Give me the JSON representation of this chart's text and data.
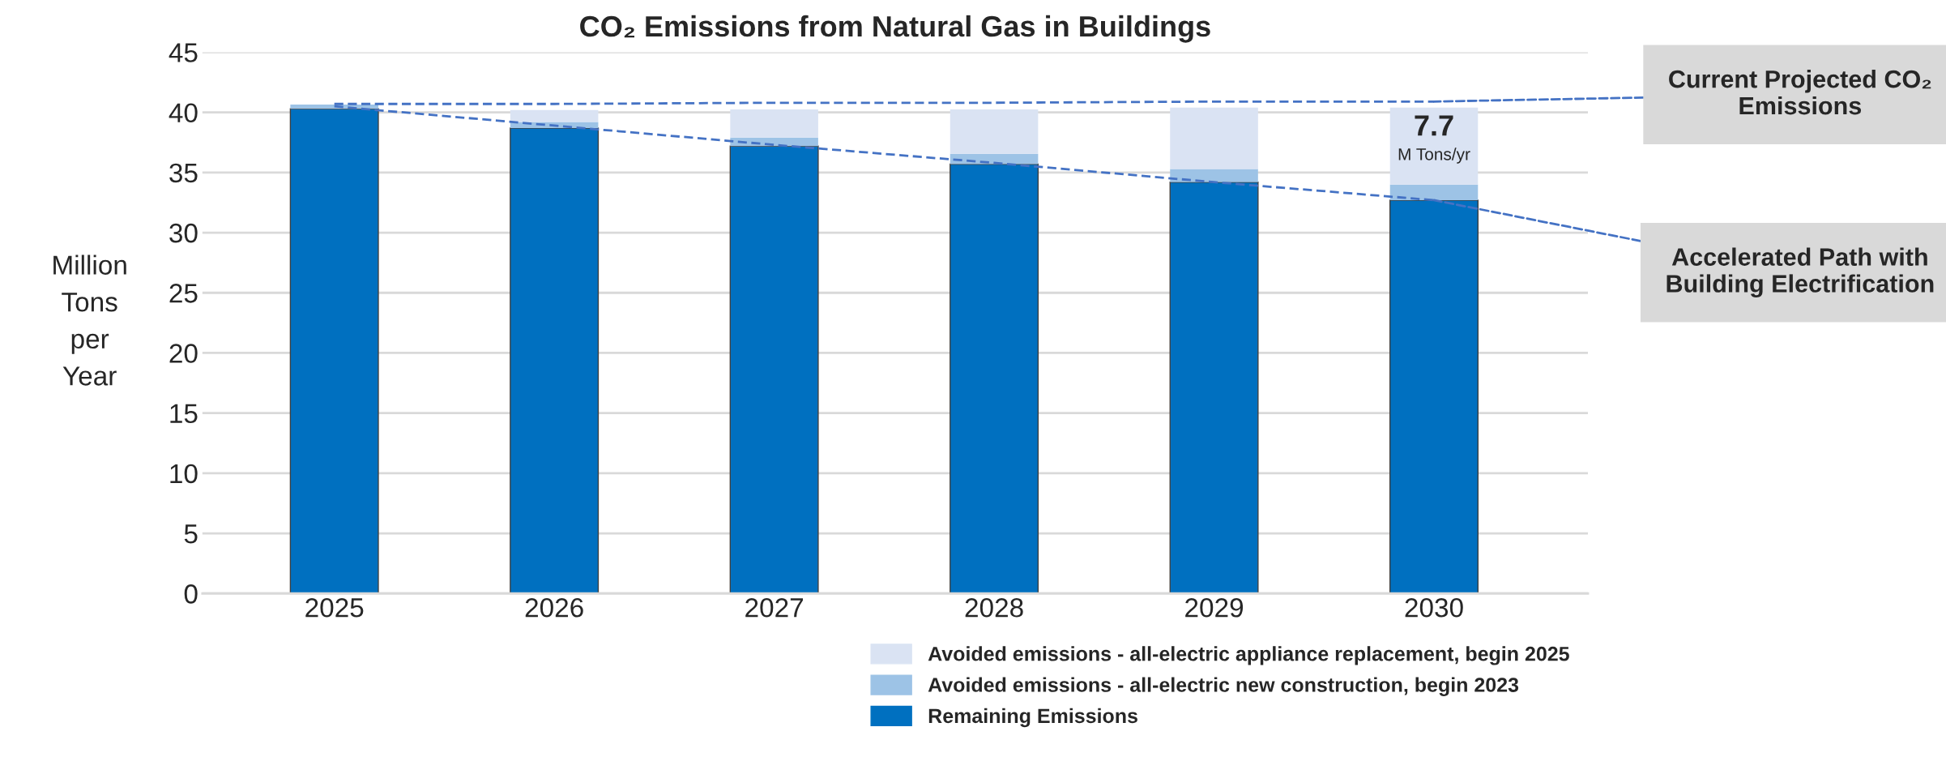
{
  "chart_data": {
    "type": "bar",
    "title": "CO₂ Emissions from Natural Gas in Buildings",
    "ylabel": "Million\nTons\nper\nYear",
    "categories": [
      "2025",
      "2026",
      "2027",
      "2028",
      "2029",
      "2030"
    ],
    "stacked": true,
    "series": [
      {
        "name": "Remaining Emissions",
        "color": "#0070c0",
        "values": [
          40.3,
          38.7,
          37.2,
          35.7,
          34.2,
          32.7
        ]
      },
      {
        "name": "Avoided emissions - all-electric new construction, begin 2023",
        "color": "#9dc3e6",
        "values": [
          0.35,
          0.5,
          0.7,
          0.85,
          1.1,
          1.3
        ]
      },
      {
        "name": "Avoided emissions - all-electric appliance replacement, begin 2025",
        "color": "#dae3f3",
        "values": [
          0,
          1.0,
          2.35,
          3.7,
          5.1,
          6.4
        ]
      },
      {
        "type": "line",
        "color": "#4472c4",
        "line_style": "dashed",
        "values": [
          40.7,
          40.7,
          40.8,
          40.8,
          40.9,
          40.9
        ]
      },
      {
        "type": "line",
        "color": "#4472c4",
        "line_style": "dashed",
        "values": [
          40.5,
          38.9,
          37.3,
          35.8,
          34.2,
          32.7
        ]
      }
    ],
    "ylim": [
      0,
      45
    ],
    "yticks": [
      0,
      5,
      10,
      15,
      20,
      25,
      30,
      35,
      40,
      45
    ],
    "grid": "y",
    "legend": "bottom right",
    "annotations": [
      "7.7",
      "M Tons/yr",
      {
        "text": "Current Projected CO₂ Emissions",
        "x": "2030",
        "y": 40.9
      },
      {
        "text": "Accelerated Path with Building Electrification",
        "x": "2030",
        "y": 32.7
      }
    ]
  }
}
